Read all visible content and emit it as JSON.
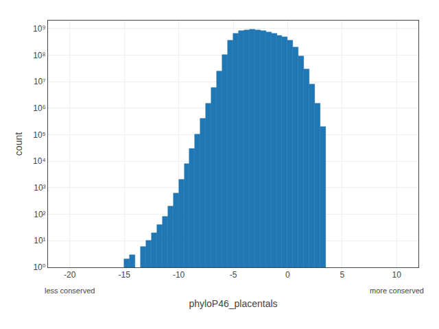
{
  "chart_data": {
    "type": "bar",
    "xlabel": "phyloP46_placentals",
    "ylabel": "count",
    "annotations": [
      {
        "text": "less conserved",
        "x": -20
      },
      {
        "text": "more conserved",
        "x": 10
      }
    ],
    "color": "#2077b4",
    "log": "y",
    "grid": true,
    "xlim": [
      -22,
      12
    ],
    "xticks": [
      -20,
      -15,
      -10,
      -5,
      0,
      5,
      10
    ],
    "ylim": [
      1,
      2000000000
    ],
    "yticks": [
      {
        "value": 1,
        "label": "10⁰"
      },
      {
        "value": 10,
        "label": "10¹"
      },
      {
        "value": 100,
        "label": "10²"
      },
      {
        "value": 1000,
        "label": "10³"
      },
      {
        "value": 10000,
        "label": "10⁴"
      },
      {
        "value": 100000,
        "label": "10⁵"
      },
      {
        "value": 1000000,
        "label": "10⁶"
      },
      {
        "value": 10000000,
        "label": "10⁷"
      },
      {
        "value": 100000000,
        "label": "10⁸"
      },
      {
        "value": 1000000000,
        "label": "10⁹"
      }
    ],
    "x": [
      -14.75,
      -14.25,
      -13.25,
      -12.75,
      -12.25,
      -11.75,
      -11.25,
      -10.75,
      -10.25,
      -9.75,
      -9.25,
      -8.75,
      -8.25,
      -7.75,
      -7.25,
      -6.75,
      -6.25,
      -5.75,
      -5.25,
      -4.75,
      -4.25,
      -3.75,
      -3.25,
      -2.75,
      -2.25,
      -1.75,
      -1.25,
      -0.75,
      -0.25,
      0.25,
      0.75,
      1.25,
      1.75,
      2.25,
      2.75,
      3.25
    ],
    "values": [
      2,
      3,
      6,
      10,
      20,
      40,
      80,
      200,
      600,
      2000,
      8000,
      30000,
      100000,
      400000,
      1500000,
      6000000,
      25000000,
      100000000,
      350000000,
      650000000,
      800000000,
      870000000,
      900000000,
      860000000,
      800000000,
      720000000,
      630000000,
      550000000,
      480000000,
      350000000,
      200000000,
      90000000,
      30000000,
      8000000,
      1500000,
      200000
    ]
  }
}
